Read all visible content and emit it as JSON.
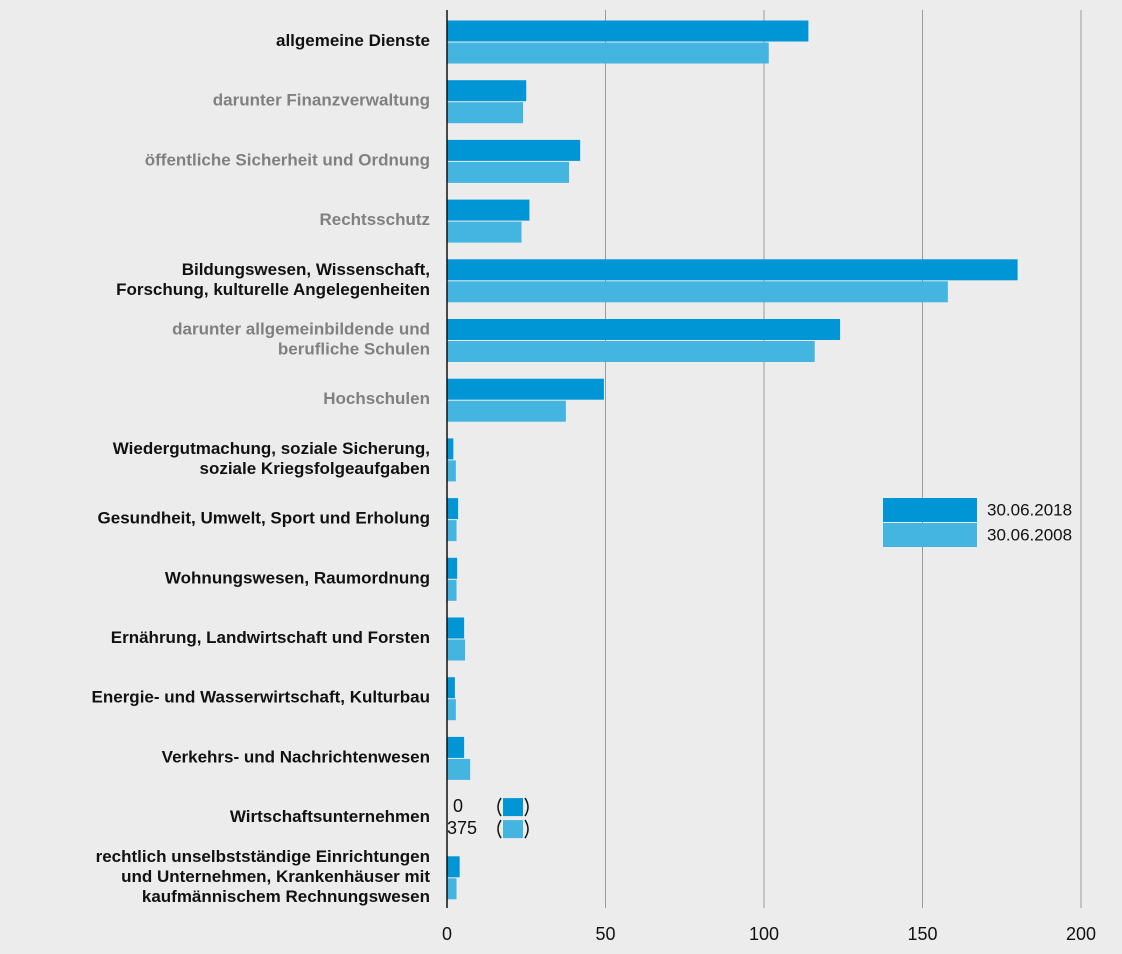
{
  "chart_data": {
    "type": "barh",
    "categories": [
      "allgemeine Dienste",
      "darunter Finanzverwaltung",
      "öffentliche Sicherheit und Ordnung",
      "Rechtsschutz",
      "Bildungswesen, Wissenschaft,\nForschung, kulturelle Angelegenheiten",
      "darunter allgemeinbildende und\nberufliche Schulen",
      "Hochschulen",
      "Wiedergutmachung, soziale Sicherung,\nsoziale Kriegsfolgeaufgaben",
      "Gesundheit, Umwelt, Sport und Erholung",
      "Wohnungswesen, Raumordnung",
      "Ernährung, Landwirtschaft und Forsten",
      "Energie- und Wasserwirtschaft, Kulturbau",
      "Verkehrs- und Nachrichtenwesen",
      "Wirtschaftsunternehmen",
      "rechtlich unselbstständige Einrichtungen\nund Unternehmen, Krankenhäuser mit\nkaufmännischem Rechnungswesen"
    ],
    "label_colors": [
      "#111111",
      "#808080",
      "#808080",
      "#808080",
      "#111111",
      "#808080",
      "#808080",
      "#111111",
      "#111111",
      "#111111",
      "#111111",
      "#111111",
      "#111111",
      "#111111",
      "#111111"
    ],
    "series": [
      {
        "name": "30.06.2018",
        "color": "#0096d6",
        "values": [
          114,
          25,
          42,
          26,
          180,
          124,
          49.5,
          2,
          3.5,
          3.2,
          5.4,
          2.5,
          5.4,
          0,
          4
        ],
        "value_labels": [
          null,
          null,
          null,
          null,
          null,
          null,
          null,
          null,
          null,
          null,
          null,
          null,
          null,
          "0",
          null
        ]
      },
      {
        "name": "30.06.2008",
        "color": "#44b4e0",
        "values": [
          101.5,
          24,
          38.5,
          23.5,
          158,
          116,
          37.5,
          2.8,
          3,
          3,
          5.7,
          2.8,
          7.3,
          375,
          3
        ],
        "value_labels": [
          null,
          null,
          null,
          null,
          null,
          null,
          null,
          null,
          null,
          null,
          null,
          null,
          null,
          "375",
          null
        ]
      }
    ],
    "xlim": [
      0,
      200
    ],
    "xticks": [
      0,
      50,
      100,
      150,
      200
    ],
    "grid": true
  }
}
